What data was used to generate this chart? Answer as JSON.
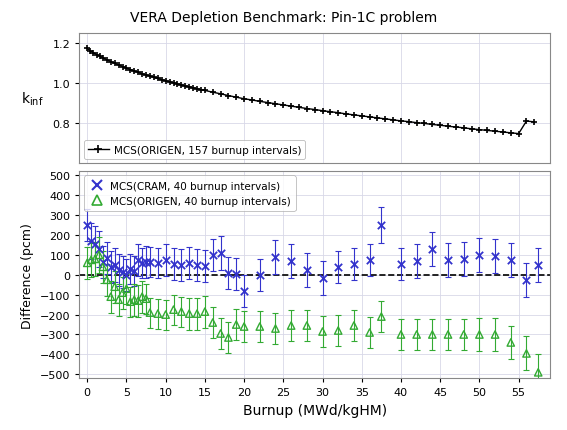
{
  "title": "VERA Depletion Benchmark: Pin-1C problem",
  "xlabel": "Burnup (MWd/kgHM)",
  "ylabel_top": "k$_{inf}$",
  "ylabel_bot": "Difference (pcm)",
  "top_legend": "MCS(ORIGEN, 157 burnup intervals)",
  "bot_legend_cram": "MCS(CRAM, 40 burnup intervals)",
  "bot_legend_origen": "MCS(ORIGEN, 40 burnup intervals)",
  "kinf_burnup": [
    0.0,
    0.4,
    0.8,
    1.2,
    1.6,
    2.0,
    2.5,
    3.0,
    3.5,
    4.0,
    4.5,
    5.0,
    5.5,
    6.0,
    6.5,
    7.0,
    7.5,
    8.0,
    8.5,
    9.0,
    9.5,
    10.0,
    10.5,
    11.0,
    11.5,
    12.0,
    12.5,
    13.0,
    13.5,
    14.0,
    14.5,
    15.0,
    16.0,
    17.0,
    18.0,
    19.0,
    20.0,
    21.0,
    22.0,
    23.0,
    24.0,
    25.0,
    26.0,
    27.0,
    28.0,
    29.0,
    30.0,
    31.0,
    32.0,
    33.0,
    34.0,
    35.0,
    36.0,
    37.0,
    38.0,
    39.0,
    40.0,
    41.0,
    42.0,
    43.0,
    44.0,
    45.0,
    46.0,
    47.0,
    48.0,
    49.0,
    50.0,
    51.0,
    52.0,
    53.0,
    54.0,
    55.0,
    56.0,
    57.0
  ],
  "kinf_values": [
    1.175,
    1.163,
    1.153,
    1.144,
    1.136,
    1.128,
    1.118,
    1.109,
    1.1,
    1.092,
    1.084,
    1.076,
    1.069,
    1.062,
    1.055,
    1.048,
    1.042,
    1.036,
    1.03,
    1.024,
    1.018,
    1.013,
    1.007,
    1.002,
    0.997,
    0.992,
    0.987,
    0.982,
    0.977,
    0.973,
    0.968,
    0.964,
    0.955,
    0.947,
    0.938,
    0.93,
    0.922,
    0.916,
    0.909,
    0.903,
    0.897,
    0.891,
    0.885,
    0.879,
    0.873,
    0.868,
    0.862,
    0.857,
    0.852,
    0.846,
    0.841,
    0.836,
    0.831,
    0.826,
    0.821,
    0.816,
    0.811,
    0.807,
    0.802,
    0.798,
    0.793,
    0.789,
    0.784,
    0.78,
    0.776,
    0.771,
    0.767,
    0.763,
    0.759,
    0.755,
    0.751,
    0.747,
    0.81,
    0.806
  ],
  "kinf_yerr": 0.004,
  "cram_burnup": [
    0.0,
    0.5,
    1.0,
    1.5,
    2.0,
    2.5,
    3.0,
    3.5,
    4.0,
    4.5,
    5.0,
    5.5,
    6.0,
    6.5,
    7.0,
    7.5,
    8.0,
    9.0,
    10.0,
    11.0,
    12.0,
    13.0,
    14.0,
    15.0,
    16.0,
    17.0,
    18.0,
    19.0,
    20.0,
    22.0,
    24.0,
    26.0,
    28.0,
    30.0,
    32.0,
    34.0,
    36.0,
    37.5,
    40.0,
    42.0,
    44.0,
    46.0,
    48.0,
    50.0,
    52.0,
    54.0,
    56.0,
    57.5
  ],
  "cram_diff": [
    250,
    170,
    155,
    130,
    65,
    85,
    40,
    50,
    25,
    15,
    0,
    30,
    20,
    75,
    60,
    65,
    65,
    60,
    75,
    55,
    50,
    60,
    50,
    45,
    100,
    110,
    10,
    5,
    -80,
    0,
    90,
    70,
    25,
    -15,
    40,
    55,
    75,
    250,
    55,
    70,
    130,
    75,
    80,
    100,
    95,
    75,
    -25,
    50
  ],
  "cram_yerr": [
    80,
    90,
    90,
    90,
    80,
    80,
    80,
    85,
    80,
    80,
    80,
    75,
    75,
    80,
    75,
    80,
    75,
    75,
    80,
    80,
    80,
    80,
    80,
    80,
    80,
    85,
    80,
    80,
    80,
    80,
    85,
    85,
    85,
    85,
    80,
    80,
    80,
    90,
    80,
    85,
    85,
    85,
    85,
    85,
    85,
    85,
    85,
    85
  ],
  "origen_burnup": [
    0.0,
    0.5,
    1.0,
    1.5,
    2.0,
    2.5,
    3.0,
    3.5,
    4.0,
    4.5,
    5.0,
    5.5,
    6.0,
    6.5,
    7.0,
    7.5,
    8.0,
    9.0,
    10.0,
    11.0,
    12.0,
    13.0,
    14.0,
    15.0,
    16.0,
    17.0,
    18.0,
    19.0,
    20.0,
    22.0,
    24.0,
    26.0,
    28.0,
    30.0,
    32.0,
    34.0,
    36.0,
    37.5,
    40.0,
    42.0,
    44.0,
    46.0,
    48.0,
    50.0,
    52.0,
    54.0,
    56.0,
    57.5
  ],
  "origen_diff": [
    60,
    75,
    80,
    100,
    40,
    -25,
    -110,
    -60,
    -125,
    -90,
    -70,
    -135,
    -125,
    -130,
    -110,
    -120,
    -190,
    -195,
    -200,
    -175,
    -185,
    -195,
    -195,
    -185,
    -240,
    -295,
    -315,
    -250,
    -260,
    -260,
    -270,
    -255,
    -255,
    -285,
    -280,
    -255,
    -290,
    -210,
    -300,
    -300,
    -300,
    -300,
    -300,
    -300,
    -300,
    -340,
    -395,
    -490
  ],
  "origen_yerr": [
    80,
    85,
    85,
    90,
    80,
    80,
    80,
    80,
    80,
    80,
    75,
    75,
    80,
    80,
    80,
    75,
    75,
    75,
    75,
    75,
    75,
    80,
    80,
    80,
    80,
    80,
    80,
    80,
    80,
    80,
    80,
    80,
    80,
    80,
    80,
    80,
    80,
    80,
    80,
    80,
    80,
    80,
    80,
    85,
    85,
    85,
    85,
    90
  ],
  "color_kinf": "#000000",
  "color_cram": "#3333cc",
  "color_origen": "#33aa33",
  "bg_color": "#ffffff",
  "grid_color": "#d8d8e8"
}
